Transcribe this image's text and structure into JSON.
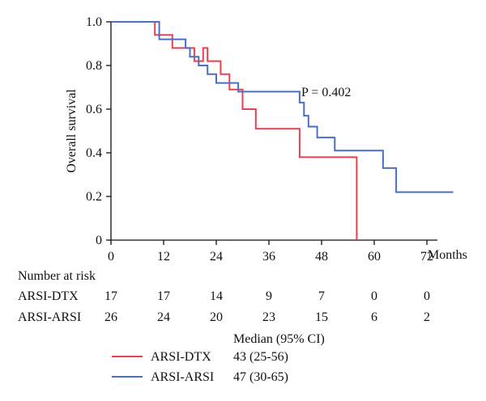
{
  "chart_data": {
    "type": "line",
    "ylabel": "Overall survival",
    "xlabel": "Months",
    "xlim": [
      0,
      78
    ],
    "ylim": [
      0,
      1
    ],
    "xticks": [
      "0",
      "12",
      "24",
      "36",
      "48",
      "60",
      "72"
    ],
    "yticks": [
      "0",
      "0.2",
      "0.4",
      "0.6",
      "0.8",
      "1.0"
    ],
    "annotation": "P = 0.402",
    "grid": false,
    "series": [
      {
        "name": "ARSI-DTX",
        "color": "#e8414f",
        "points": [
          [
            0,
            1.0
          ],
          [
            10,
            1.0
          ],
          [
            10,
            0.94
          ],
          [
            14,
            0.94
          ],
          [
            14,
            0.88
          ],
          [
            19,
            0.88
          ],
          [
            19,
            0.82
          ],
          [
            21,
            0.82
          ],
          [
            21,
            0.88
          ],
          [
            22,
            0.88
          ],
          [
            22,
            0.82
          ],
          [
            25,
            0.82
          ],
          [
            25,
            0.76
          ],
          [
            27,
            0.76
          ],
          [
            27,
            0.69
          ],
          [
            30,
            0.69
          ],
          [
            30,
            0.6
          ],
          [
            33,
            0.6
          ],
          [
            33,
            0.51
          ],
          [
            43,
            0.51
          ],
          [
            43,
            0.38
          ],
          [
            56,
            0.38
          ],
          [
            56,
            0.0
          ]
        ]
      },
      {
        "name": "ARSI-ARSI",
        "color": "#4a6fc7",
        "points": [
          [
            0,
            1.0
          ],
          [
            11,
            1.0
          ],
          [
            11,
            0.92
          ],
          [
            17,
            0.92
          ],
          [
            17,
            0.88
          ],
          [
            18,
            0.88
          ],
          [
            18,
            0.84
          ],
          [
            20,
            0.84
          ],
          [
            20,
            0.8
          ],
          [
            22,
            0.8
          ],
          [
            22,
            0.76
          ],
          [
            24,
            0.76
          ],
          [
            24,
            0.72
          ],
          [
            29,
            0.72
          ],
          [
            29,
            0.68
          ],
          [
            43,
            0.68
          ],
          [
            43,
            0.63
          ],
          [
            44,
            0.63
          ],
          [
            44,
            0.57
          ],
          [
            45,
            0.57
          ],
          [
            45,
            0.52
          ],
          [
            47,
            0.52
          ],
          [
            47,
            0.47
          ],
          [
            51,
            0.47
          ],
          [
            51,
            0.41
          ],
          [
            62,
            0.41
          ],
          [
            62,
            0.33
          ],
          [
            65,
            0.33
          ],
          [
            65,
            0.22
          ],
          [
            78,
            0.22
          ]
        ]
      }
    ]
  },
  "risk_table": {
    "heading": "Number at risk",
    "rows": [
      {
        "label": "ARSI-DTX",
        "values": [
          "17",
          "17",
          "14",
          "9",
          "7",
          "0",
          "0"
        ]
      },
      {
        "label": "ARSI-ARSI",
        "values": [
          "26",
          "24",
          "20",
          "23",
          "15",
          "6",
          "2"
        ]
      }
    ]
  },
  "legend": {
    "header": "Median (95% CI)",
    "items": [
      {
        "label": "ARSI-DTX",
        "median": "43 (25-56)",
        "color": "#e8414f"
      },
      {
        "label": "ARSI-ARSI",
        "median": "47 (30-65)",
        "color": "#4a6fc7"
      }
    ]
  }
}
